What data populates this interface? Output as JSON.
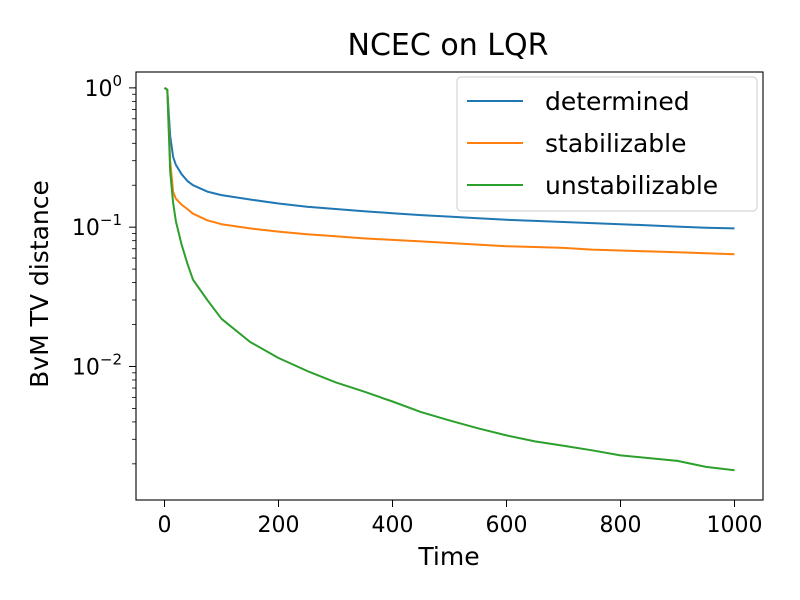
{
  "chart_data": {
    "type": "line",
    "title": "NCEC on LQR",
    "xlabel": "Time",
    "ylabel": "BvM TV distance",
    "xlim": [
      -50,
      1050
    ],
    "ylim": [
      0.0011,
      1.3
    ],
    "yscale": "log",
    "grid": false,
    "legend_position": "top-right",
    "x_ticks": [
      {
        "value": 0,
        "label": "0"
      },
      {
        "value": 200,
        "label": "200"
      },
      {
        "value": 400,
        "label": "400"
      },
      {
        "value": 600,
        "label": "600"
      },
      {
        "value": 800,
        "label": "800"
      },
      {
        "value": 1000,
        "label": "1000"
      }
    ],
    "y_ticks": [
      {
        "value": 1,
        "base": "10",
        "exp": "0"
      },
      {
        "value": 0.1,
        "base": "10",
        "exp": "−1"
      },
      {
        "value": 0.01,
        "base": "10",
        "exp": "−2"
      }
    ],
    "x": [
      0,
      5,
      10,
      15,
      20,
      30,
      40,
      50,
      75,
      100,
      150,
      200,
      250,
      300,
      350,
      400,
      450,
      500,
      550,
      600,
      650,
      700,
      750,
      800,
      850,
      900,
      950,
      1000
    ],
    "series": [
      {
        "name": "determined",
        "color": "#1f77b4",
        "values": [
          1.0,
          0.97,
          0.45,
          0.32,
          0.28,
          0.24,
          0.215,
          0.2,
          0.18,
          0.17,
          0.158,
          0.148,
          0.14,
          0.135,
          0.13,
          0.126,
          0.122,
          0.119,
          0.116,
          0.113,
          0.111,
          0.109,
          0.107,
          0.105,
          0.103,
          0.101,
          0.099,
          0.098
        ]
      },
      {
        "name": "stabilizable",
        "color": "#ff7f0e",
        "values": [
          1.0,
          0.97,
          0.3,
          0.18,
          0.16,
          0.145,
          0.135,
          0.125,
          0.112,
          0.105,
          0.098,
          0.093,
          0.089,
          0.086,
          0.083,
          0.081,
          0.079,
          0.077,
          0.075,
          0.073,
          0.072,
          0.071,
          0.069,
          0.068,
          0.067,
          0.066,
          0.065,
          0.064
        ]
      },
      {
        "name": "unstabilizable",
        "color": "#2ca02c",
        "values": [
          1.0,
          0.97,
          0.25,
          0.15,
          0.11,
          0.075,
          0.055,
          0.042,
          0.03,
          0.022,
          0.015,
          0.0115,
          0.0093,
          0.0077,
          0.0066,
          0.0056,
          0.0047,
          0.0041,
          0.0036,
          0.0032,
          0.0029,
          0.0027,
          0.0025,
          0.0023,
          0.0022,
          0.0021,
          0.0019,
          0.0018
        ]
      }
    ]
  }
}
